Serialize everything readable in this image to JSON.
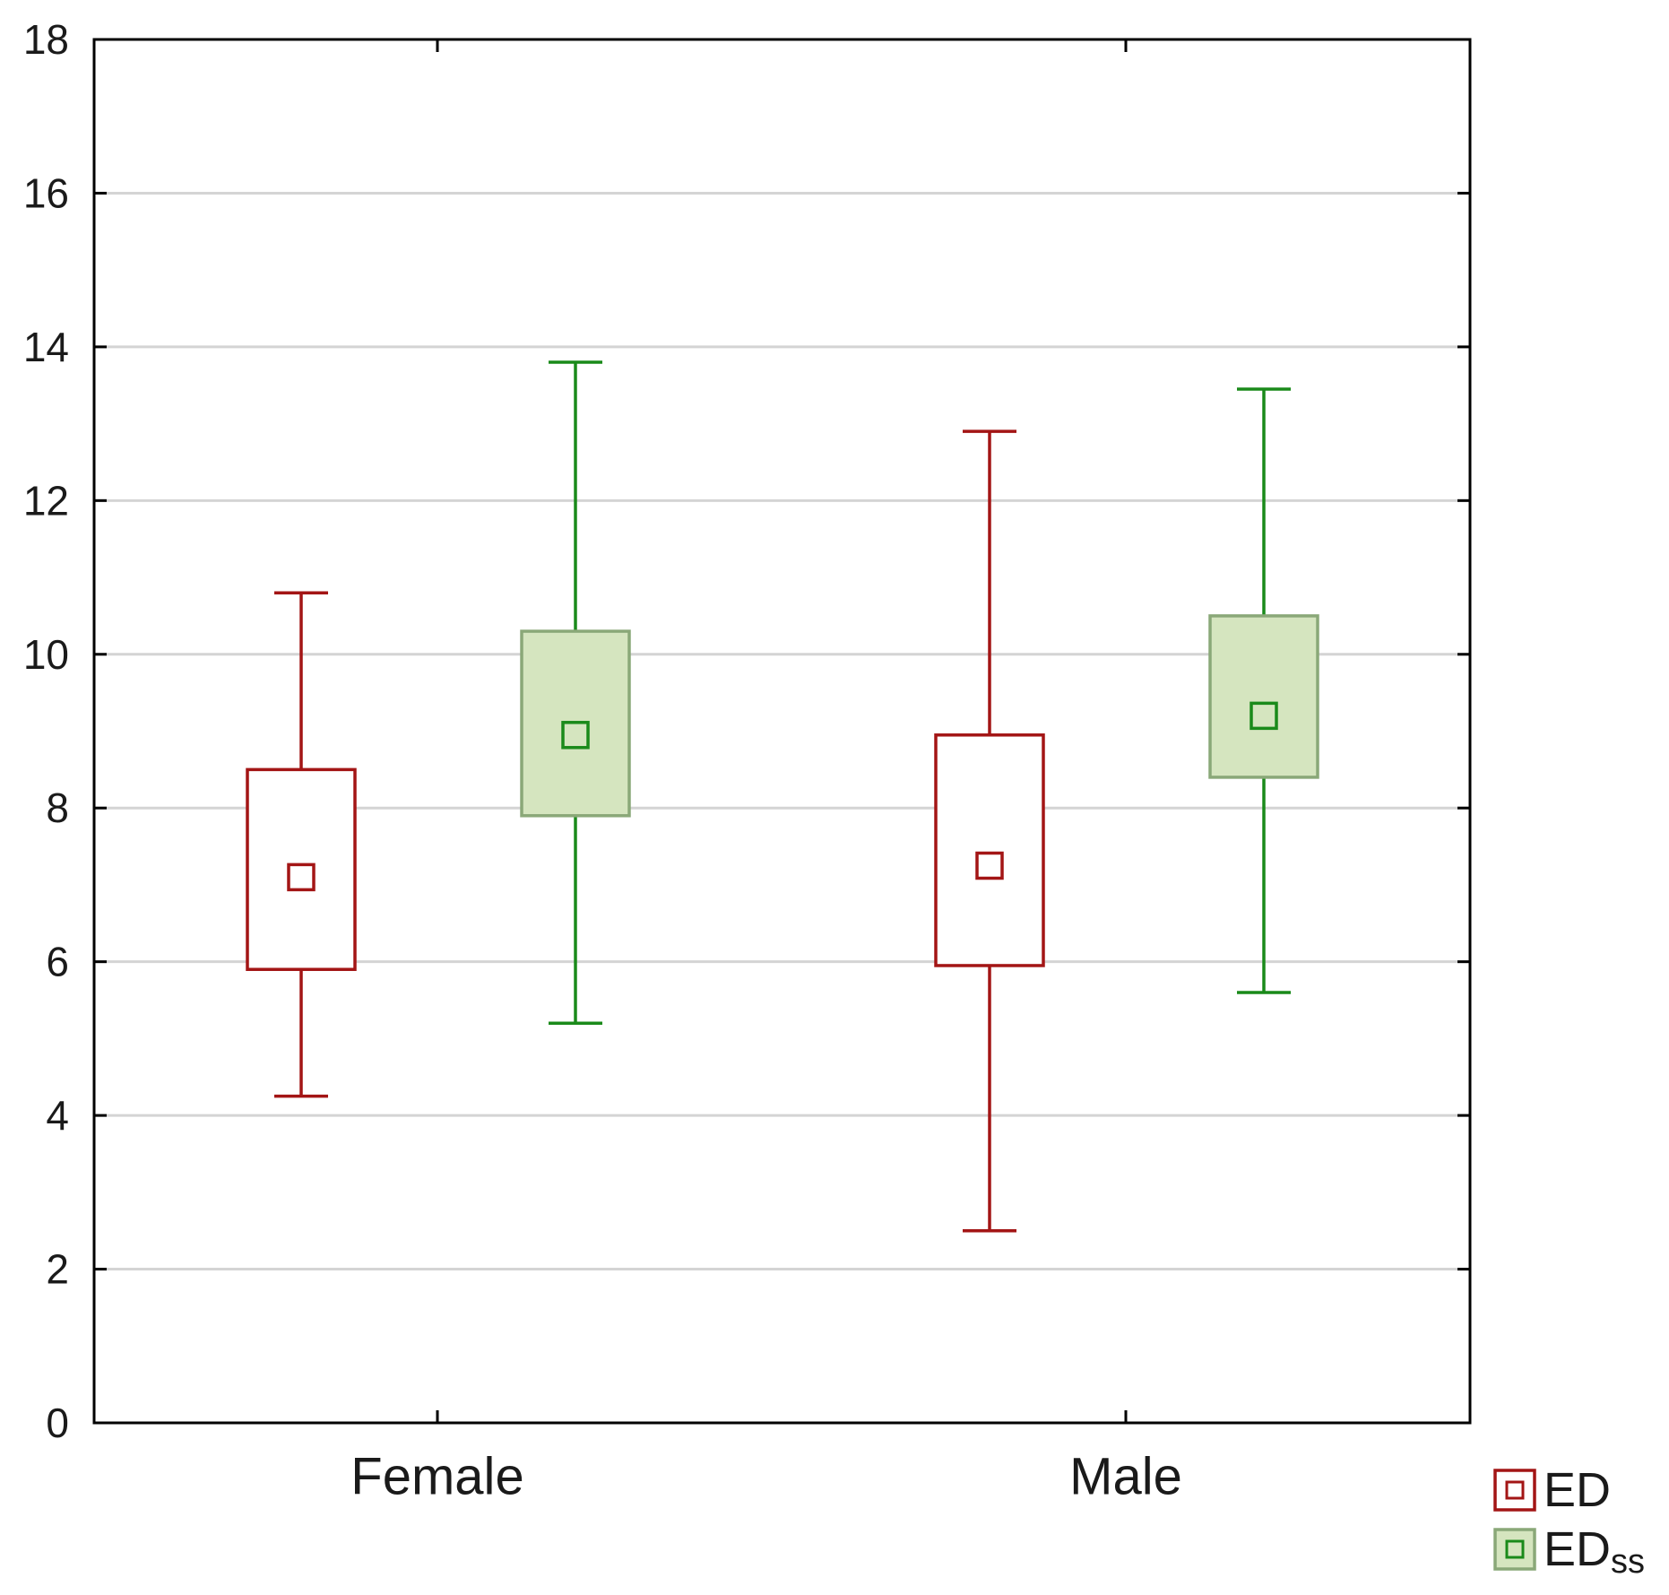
{
  "chart_data": {
    "type": "boxplot",
    "title": "",
    "xlabel": "",
    "ylabel": "",
    "ylim": [
      0,
      18
    ],
    "yticks": [
      0,
      2,
      4,
      6,
      8,
      10,
      12,
      14,
      16,
      18
    ],
    "grid": true,
    "legend_position": "bottom-right",
    "categories": [
      "Female",
      "Male"
    ],
    "series": [
      {
        "name": "ED",
        "legend_main": "ED",
        "legend_sub": "",
        "stroke": "#a31515",
        "fill": "#ffffff",
        "marker_stroke": "#a31515",
        "boxes": [
          {
            "category": "Female",
            "whisker_low": 4.25,
            "box_low": 5.9,
            "mid": 7.1,
            "box_high": 8.5,
            "whisker_high": 10.8
          },
          {
            "category": "Male",
            "whisker_low": 2.5,
            "box_low": 5.95,
            "mid": 7.25,
            "box_high": 8.95,
            "whisker_high": 12.9
          }
        ]
      },
      {
        "name": "EDss",
        "legend_main": "ED",
        "legend_sub": "ss",
        "stroke": "#1a8a1a",
        "fill": "#d5e5bf",
        "box_stroke": "#8aa878",
        "marker_stroke": "#1a8a1a",
        "boxes": [
          {
            "category": "Female",
            "whisker_low": 5.2,
            "box_low": 7.9,
            "mid": 8.95,
            "box_high": 10.3,
            "whisker_high": 13.8
          },
          {
            "category": "Male",
            "whisker_low": 5.6,
            "box_low": 8.4,
            "mid": 9.2,
            "box_high": 10.5,
            "whisker_high": 13.45
          }
        ]
      }
    ]
  }
}
